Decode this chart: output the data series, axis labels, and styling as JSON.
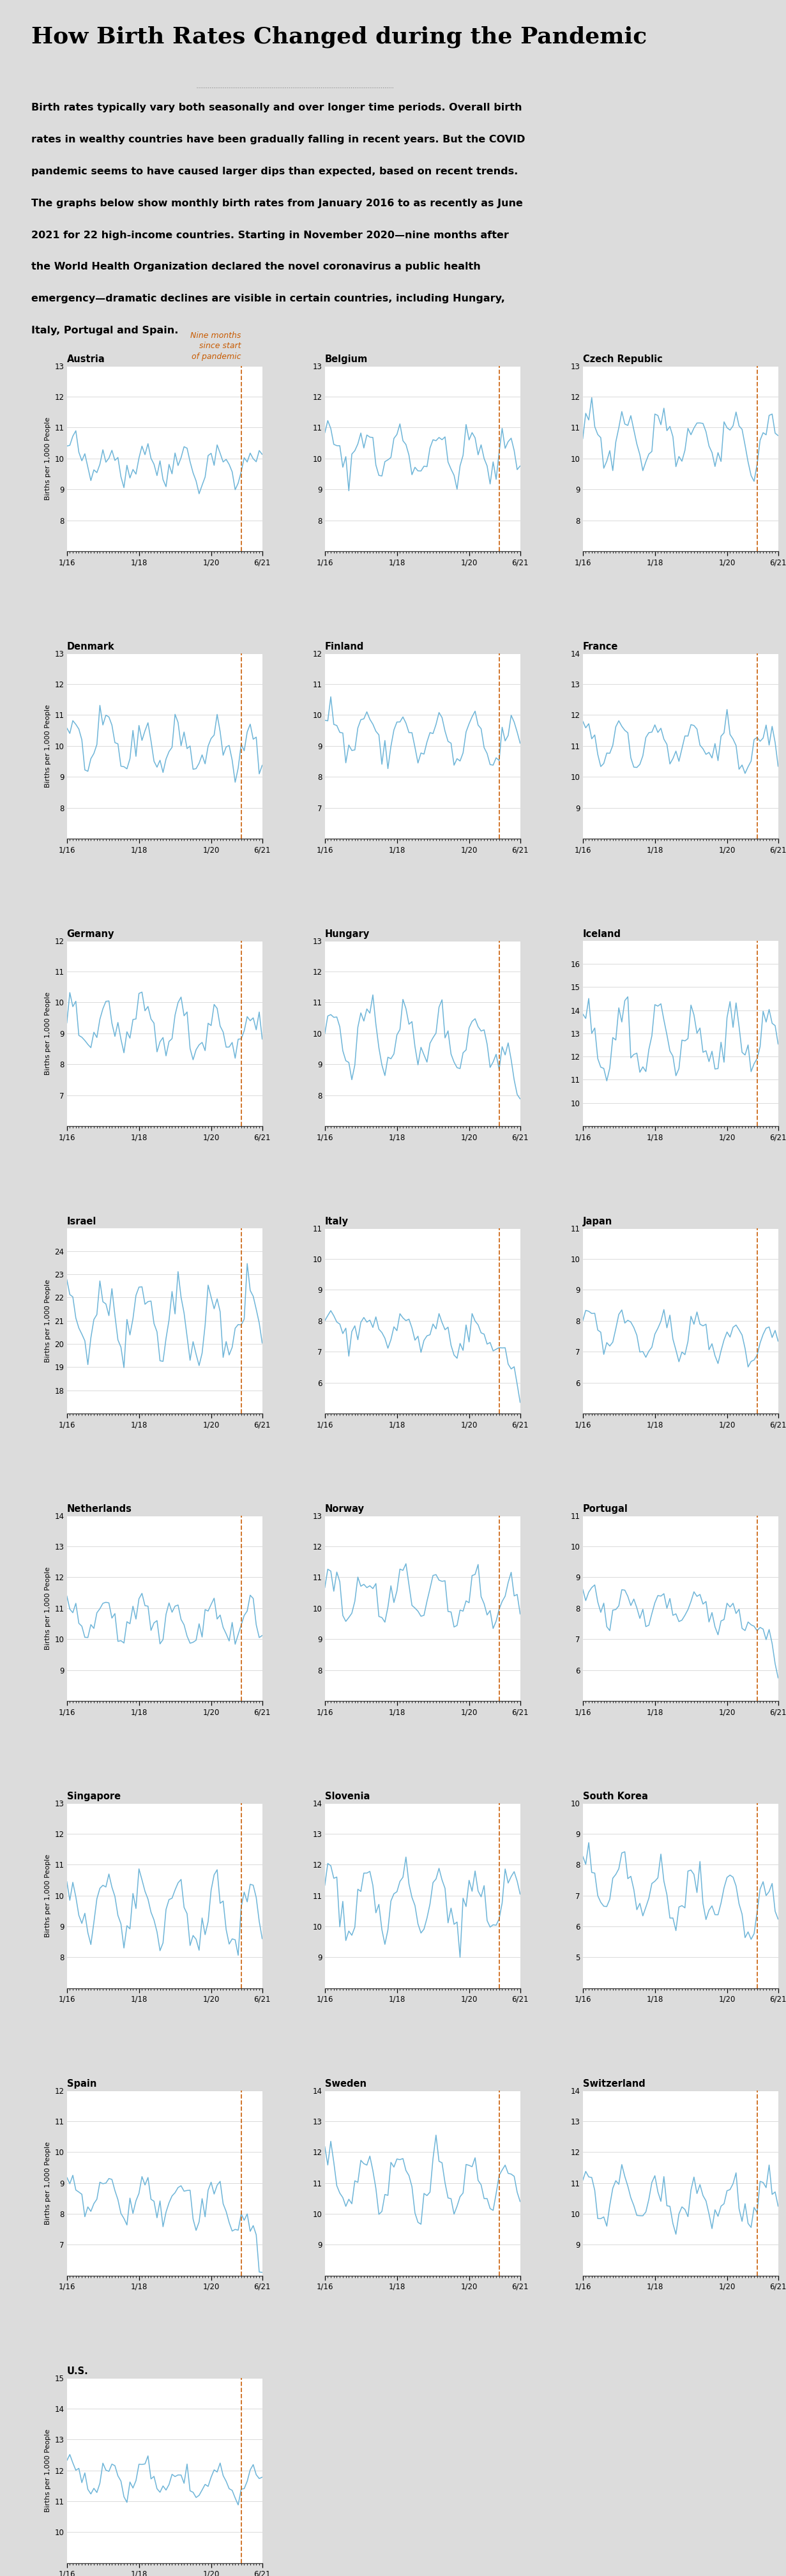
{
  "title": "How Birth Rates Changed during the Pandemic",
  "description_lines": [
    "Birth rates typically vary both seasonally and over longer time periods. Overall birth",
    "rates in wealthy countries have been gradually falling in recent years. But the COVID",
    "pandemic seems to have caused larger dips than expected, based on recent trends.",
    "The graphs below show monthly birth rates from January 2016 to as recently as June",
    "2021 for 22 high-income countries. Starting in November 2020—nine months after",
    "the World Health Organization declared the novel coronavirus a public health",
    "emergency—dramatic declines are visible in certain countries, including Hungary,",
    "Italy, Portugal and Spain."
  ],
  "annotation": "Nine months\nsince start\nof pandemic",
  "annotation_color": "#C85A00",
  "line_color": "#6EB5D8",
  "vline_color": "#C85A00",
  "bg_color": "#DCDCDC",
  "plot_bg": "#FFFFFF",
  "ylabel": "Births per 1,000 People",
  "countries": [
    "Austria",
    "Belgium",
    "Czech Republic",
    "Denmark",
    "Finland",
    "France",
    "Germany",
    "Hungary",
    "Iceland",
    "Israel",
    "Italy",
    "Japan",
    "Netherlands",
    "Norway",
    "Portugal",
    "Singapore",
    "Slovenia",
    "South Korea",
    "Spain",
    "Sweden",
    "Switzerland",
    "U.S."
  ],
  "ylims": {
    "Austria": [
      7,
      13
    ],
    "Belgium": [
      7,
      13
    ],
    "Czech Republic": [
      7,
      13
    ],
    "Denmark": [
      7,
      13
    ],
    "Finland": [
      6,
      12
    ],
    "France": [
      8,
      14
    ],
    "Germany": [
      6,
      12
    ],
    "Hungary": [
      7,
      13
    ],
    "Iceland": [
      9,
      17
    ],
    "Israel": [
      17,
      25
    ],
    "Italy": [
      5,
      11
    ],
    "Japan": [
      5,
      11
    ],
    "Netherlands": [
      8,
      14
    ],
    "Norway": [
      7,
      13
    ],
    "Portugal": [
      5,
      11
    ],
    "Singapore": [
      7,
      13
    ],
    "Slovenia": [
      8,
      14
    ],
    "South Korea": [
      4,
      10
    ],
    "Spain": [
      6,
      12
    ],
    "Sweden": [
      8,
      14
    ],
    "Switzerland": [
      8,
      14
    ],
    "U.S.": [
      9,
      15
    ]
  },
  "yticks": {
    "Austria": [
      8,
      9,
      10,
      11,
      12,
      13
    ],
    "Belgium": [
      8,
      9,
      10,
      11,
      12,
      13
    ],
    "Czech Republic": [
      8,
      9,
      10,
      11,
      12,
      13
    ],
    "Denmark": [
      8,
      9,
      10,
      11,
      12,
      13
    ],
    "Finland": [
      7,
      8,
      9,
      10,
      11,
      12
    ],
    "France": [
      9,
      10,
      11,
      12,
      13,
      14
    ],
    "Germany": [
      7,
      8,
      9,
      10,
      11,
      12
    ],
    "Hungary": [
      8,
      9,
      10,
      11,
      12,
      13
    ],
    "Iceland": [
      10,
      11,
      12,
      13,
      14,
      15,
      16
    ],
    "Israel": [
      18,
      19,
      20,
      21,
      22,
      23,
      24
    ],
    "Italy": [
      6,
      7,
      8,
      9,
      10,
      11
    ],
    "Japan": [
      6,
      7,
      8,
      9,
      10,
      11
    ],
    "Netherlands": [
      9,
      10,
      11,
      12,
      13,
      14
    ],
    "Norway": [
      8,
      9,
      10,
      11,
      12,
      13
    ],
    "Portugal": [
      6,
      7,
      8,
      9,
      10,
      11
    ],
    "Singapore": [
      8,
      9,
      10,
      11,
      12,
      13
    ],
    "Slovenia": [
      9,
      10,
      11,
      12,
      13,
      14
    ],
    "South Korea": [
      5,
      6,
      7,
      8,
      9,
      10
    ],
    "Spain": [
      7,
      8,
      9,
      10,
      11,
      12
    ],
    "Sweden": [
      9,
      10,
      11,
      12,
      13,
      14
    ],
    "Switzerland": [
      9,
      10,
      11,
      12,
      13,
      14
    ],
    "U.S.": [
      10,
      11,
      12,
      13,
      14,
      15
    ]
  },
  "n_months": 66,
  "pandemic_month": 58,
  "xtick_positions": [
    0,
    24,
    48,
    65
  ],
  "xtick_labels": [
    "1/16",
    "1/18",
    "1/20",
    "6/21"
  ]
}
